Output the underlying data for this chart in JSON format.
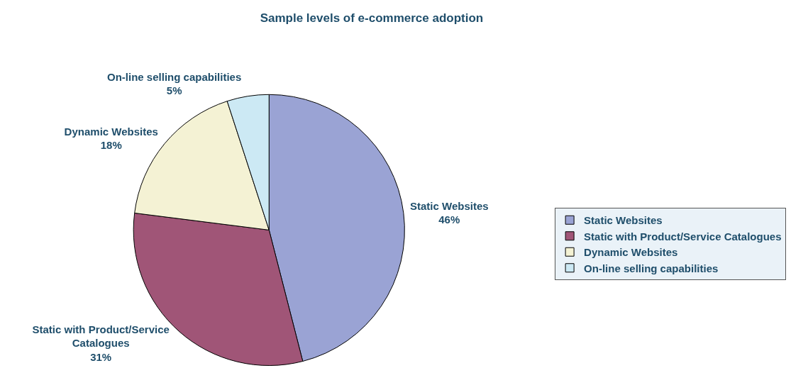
{
  "chart_data": {
    "type": "pie",
    "title": "Sample levels of e-commerce adoption",
    "categories": [
      "Static Websites",
      "Static with Product/Service Catalogues",
      "Dynamic Websites",
      "On-line selling capabilities"
    ],
    "values": [
      46,
      31,
      18,
      5
    ],
    "value_labels": [
      "46%",
      "31%",
      "18%",
      "5%"
    ],
    "colors": [
      "#9aa3d4",
      "#a05577",
      "#f4f2d4",
      "#cce9f4"
    ],
    "legend": "right"
  }
}
